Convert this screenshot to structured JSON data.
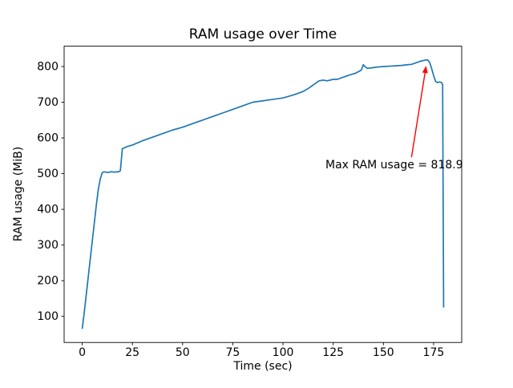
{
  "figure": {
    "background": "#ffffff"
  },
  "chart_data": {
    "type": "line",
    "title": "RAM usage over Time",
    "xlabel": "Time (sec)",
    "ylabel": "RAM usage (MiB)",
    "line_color": "#1f77b4",
    "axis_color": "#000000",
    "xlim": [
      -9,
      189
    ],
    "ylim": [
      27,
      857
    ],
    "xticks": [
      0,
      25,
      50,
      75,
      100,
      125,
      150,
      175
    ],
    "yticks": [
      100,
      200,
      300,
      400,
      500,
      600,
      700,
      800
    ],
    "x": [
      0,
      1,
      2,
      3,
      4,
      5,
      6,
      7,
      8,
      9,
      10,
      11,
      12,
      13,
      14,
      15,
      16,
      17,
      18,
      19,
      20,
      21,
      22,
      25,
      30,
      35,
      40,
      45,
      50,
      55,
      60,
      65,
      70,
      75,
      80,
      85,
      90,
      95,
      100,
      105,
      110,
      113,
      116,
      118,
      120,
      122,
      125,
      127,
      130,
      133,
      136,
      139,
      140,
      141,
      142,
      144,
      146,
      148,
      150,
      153,
      156,
      159,
      162,
      164,
      166,
      168,
      170,
      171,
      172,
      173,
      174,
      175,
      176,
      177,
      178,
      179,
      179.5,
      180
    ],
    "y": [
      65,
      110,
      160,
      210,
      260,
      310,
      360,
      410,
      455,
      485,
      503,
      505,
      504,
      503,
      505,
      505,
      504,
      505,
      505,
      508,
      570,
      572,
      575,
      580,
      592,
      602,
      612,
      622,
      630,
      640,
      650,
      660,
      670,
      680,
      690,
      700,
      704,
      708,
      712,
      720,
      730,
      740,
      752,
      760,
      762,
      760,
      764,
      764,
      770,
      776,
      781,
      790,
      805,
      799,
      795,
      796,
      798,
      799,
      800,
      801,
      802,
      803,
      805,
      806,
      810,
      814,
      817,
      818,
      818.9,
      812,
      795,
      775,
      758,
      755,
      757,
      755,
      750,
      125
    ],
    "max_value": 818.9,
    "annotation": {
      "text": "Max RAM usage = 818.9",
      "color": "#ff0000",
      "text_xy": [
        121,
        514
      ],
      "arrow_start": [
        164,
        546
      ],
      "arrow_end": [
        171.3,
        802
      ]
    }
  }
}
